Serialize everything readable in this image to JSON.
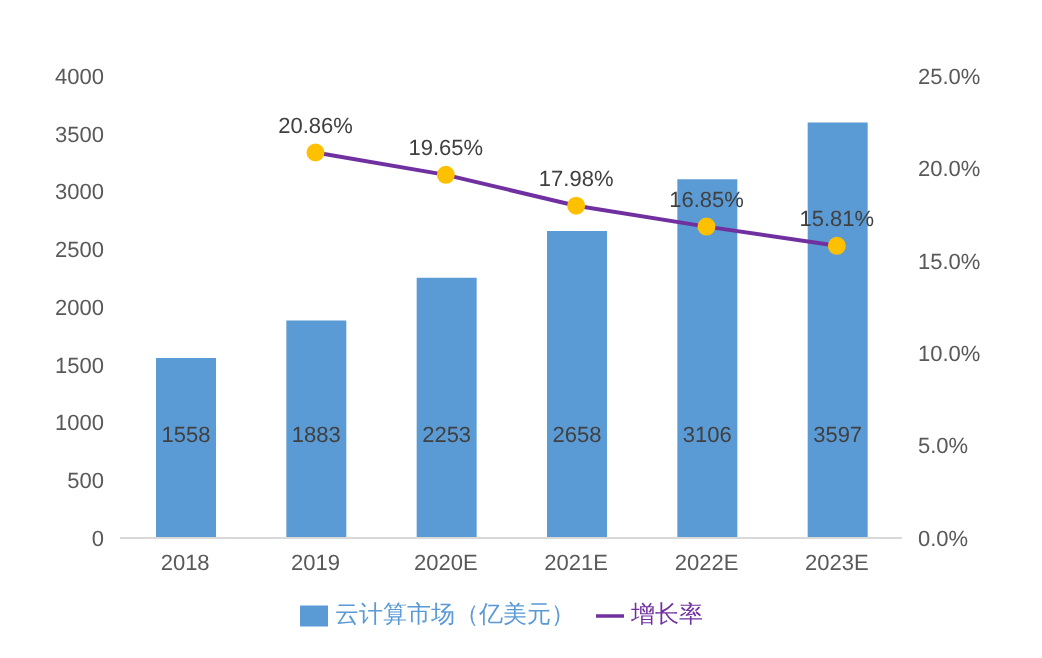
{
  "chart_data": {
    "type": "bar",
    "categories": [
      "2018",
      "2019",
      "2020E",
      "2021E",
      "2022E",
      "2023E"
    ],
    "series": [
      {
        "name": "云计算市场（亿美元）",
        "color": "#5b9bd5",
        "values": [
          1558,
          1883,
          2253,
          2658,
          3106,
          3597
        ],
        "value_labels": [
          "1558",
          "1883",
          "2253",
          "2658",
          "3106",
          "3597"
        ]
      },
      {
        "name": "增长率",
        "type": "line",
        "axis": "y2",
        "color": "#7030a0",
        "values": [
          null,
          20.86,
          19.65,
          17.98,
          16.85,
          15.81
        ],
        "value_labels": [
          null,
          "20.86%",
          "19.65%",
          "17.98%",
          "16.85%",
          "15.81%"
        ]
      }
    ],
    "ylim": [
      0,
      4000
    ],
    "yticks": [
      0,
      500,
      1000,
      1500,
      2000,
      2500,
      3000,
      3500,
      4000
    ],
    "y2lim": [
      0,
      25
    ],
    "y2ticks": [
      {
        "value": 0,
        "label": "0.0%"
      },
      {
        "value": 5,
        "label": "5.0%"
      },
      {
        "value": 10,
        "label": "10.0%"
      },
      {
        "value": 15,
        "label": "15.0%"
      },
      {
        "value": 20,
        "label": "20.0%"
      },
      {
        "value": 25,
        "label": "25.0%"
      }
    ],
    "marker": "circle",
    "legend": "bottom",
    "grid": false
  }
}
